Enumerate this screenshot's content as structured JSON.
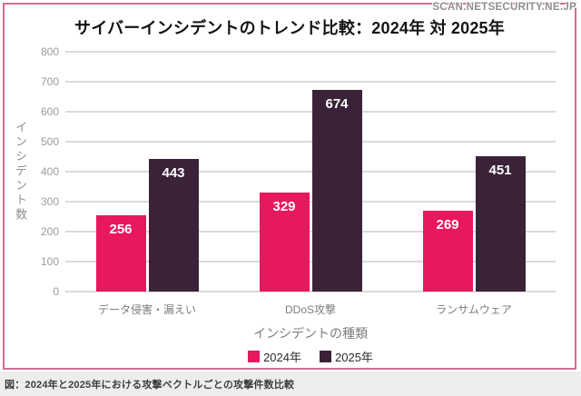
{
  "watermark": "SCAN.NETSECURITY.NE.JP",
  "caption": "図：2024年と2025年における攻撃ベクトルごとの攻撃件数比較",
  "colors": {
    "series_2024": "#e8185e",
    "series_2025": "#3a2338",
    "card_border": "#cf6e96",
    "gridline": "#dadada",
    "caption_background": "#ededed"
  },
  "chart_data": {
    "type": "bar",
    "title": "サイバーインシデントのトレンド比較：2024年 対 2025年",
    "xlabel": "インシデントの種類",
    "ylabel": "インシデント数",
    "categories": [
      "データ侵害・漏えい",
      "DDoS攻撃",
      "ランサムウェア"
    ],
    "series": [
      {
        "name": "2024年",
        "color": "#e8185e",
        "values": [
          256,
          329,
          269
        ]
      },
      {
        "name": "2025年",
        "color": "#3a2338",
        "values": [
          443,
          674,
          451
        ]
      }
    ],
    "ylim": [
      0,
      800
    ],
    "ytick_step": 100,
    "grid": true,
    "legend_position": "bottom",
    "value_labels": "inside-top"
  }
}
